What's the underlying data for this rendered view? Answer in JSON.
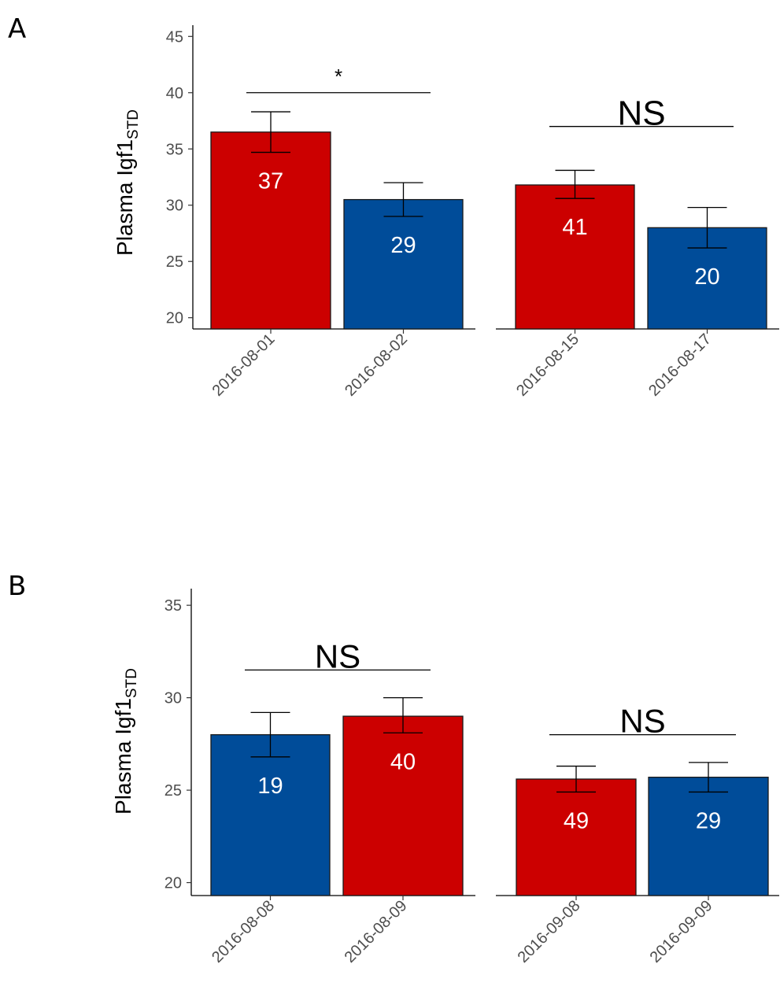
{
  "colors": {
    "red": "#cc0000",
    "blue": "#004c99"
  },
  "panels": [
    {
      "label": "A",
      "ylabel_main": "Plasma Igf1",
      "ylabel_sub": "STD",
      "chart_data": {
        "type": "bar",
        "ylim": [
          19,
          46
        ],
        "yticks": [
          20,
          25,
          30,
          35,
          40,
          45
        ],
        "error_bars": true,
        "facets": [
          {
            "bars": [
              {
                "category": "2016-08-01",
                "value": 36.5,
                "err_low": 34.7,
                "err_high": 38.3,
                "n": "37",
                "color": "red"
              },
              {
                "category": "2016-08-02",
                "value": 30.5,
                "err_low": 29.0,
                "err_high": 32.0,
                "n": "29",
                "color": "blue"
              }
            ],
            "significance": {
              "text": "*",
              "y": 40.0
            }
          },
          {
            "bars": [
              {
                "category": "2016-08-15",
                "value": 31.8,
                "err_low": 30.6,
                "err_high": 33.1,
                "n": "41",
                "color": "red"
              },
              {
                "category": "2016-08-17",
                "value": 28.0,
                "err_low": 26.2,
                "err_high": 29.8,
                "n": "20",
                "color": "blue"
              }
            ],
            "significance": {
              "text": "NS",
              "y": 37.0
            }
          }
        ]
      }
    },
    {
      "label": "B",
      "ylabel_main": "Plasma Igf1",
      "ylabel_sub": "STD",
      "chart_data": {
        "type": "bar",
        "ylim": [
          19.3,
          35.9
        ],
        "yticks": [
          20,
          25,
          30,
          35
        ],
        "error_bars": true,
        "facets": [
          {
            "bars": [
              {
                "category": "2016-08-08",
                "value": 28.0,
                "err_low": 26.8,
                "err_high": 29.2,
                "n": "19",
                "color": "blue"
              },
              {
                "category": "2016-08-09",
                "value": 29.0,
                "err_low": 28.1,
                "err_high": 30.0,
                "n": "40",
                "color": "red"
              }
            ],
            "significance": {
              "text": "NS",
              "y": 31.5
            }
          },
          {
            "bars": [
              {
                "category": "2016-09-08",
                "value": 25.6,
                "err_low": 24.9,
                "err_high": 26.3,
                "n": "49",
                "color": "red"
              },
              {
                "category": "2016-09-09",
                "value": 25.7,
                "err_low": 24.9,
                "err_high": 26.5,
                "n": "29",
                "color": "blue"
              }
            ],
            "significance": {
              "text": "NS",
              "y": 28.0
            }
          }
        ]
      }
    }
  ]
}
